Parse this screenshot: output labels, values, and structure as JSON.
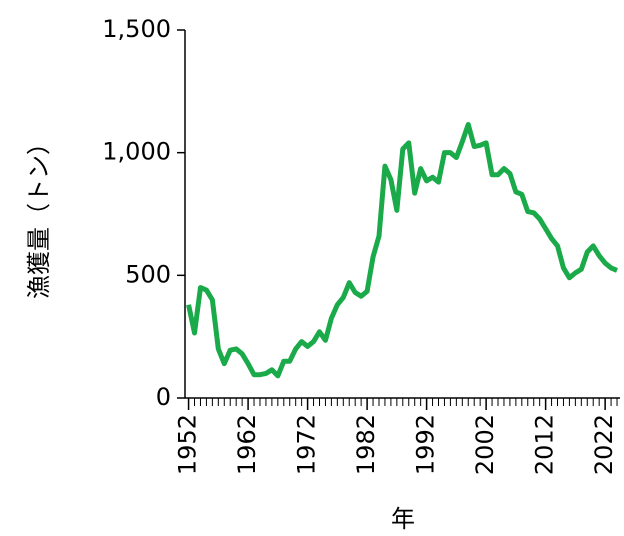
{
  "chart_data": {
    "type": "line",
    "y_label": "漁獲量（トン）",
    "x_label": "年",
    "x": [
      1952,
      1953,
      1954,
      1955,
      1956,
      1957,
      1958,
      1959,
      1960,
      1961,
      1962,
      1963,
      1964,
      1965,
      1966,
      1967,
      1968,
      1969,
      1970,
      1971,
      1972,
      1973,
      1974,
      1975,
      1976,
      1977,
      1978,
      1979,
      1980,
      1981,
      1982,
      1983,
      1984,
      1985,
      1986,
      1987,
      1988,
      1989,
      1990,
      1991,
      1992,
      1993,
      1994,
      1995,
      1996,
      1997,
      1998,
      1999,
      2000,
      2001,
      2002,
      2003,
      2004,
      2005,
      2006,
      2007,
      2008,
      2009,
      2010,
      2011,
      2012,
      2013,
      2014,
      2015,
      2016,
      2017,
      2018,
      2019,
      2020,
      2021,
      2022,
      2023,
      2024
    ],
    "series": [
      {
        "color": "#1aaa4a",
        "values": [
          380,
          265,
          450,
          440,
          400,
          200,
          140,
          195,
          200,
          180,
          140,
          95,
          95,
          100,
          115,
          90,
          150,
          150,
          200,
          230,
          210,
          230,
          270,
          235,
          325,
          380,
          410,
          470,
          430,
          415,
          435,
          575,
          660,
          945,
          890,
          765,
          1015,
          1040,
          835,
          935,
          885,
          900,
          880,
          1000,
          1000,
          980,
          1045,
          1115,
          1025,
          1030,
          1040,
          910,
          910,
          935,
          915,
          840,
          830,
          760,
          755,
          730,
          690,
          650,
          620,
          530,
          490,
          510,
          525,
          595,
          620,
          580,
          550,
          530,
          520
        ]
      }
    ],
    "xlim": [
      1951.4,
      2024.5
    ],
    "xticks": [
      1952,
      1962,
      1972,
      1982,
      1992,
      2002,
      2012,
      2022
    ],
    "ylim": [
      0,
      1500
    ],
    "yticks": [
      0,
      500,
      {
        "value": 1000,
        "label": "1,000"
      },
      {
        "value": 1500,
        "label": "1,500"
      }
    ]
  }
}
